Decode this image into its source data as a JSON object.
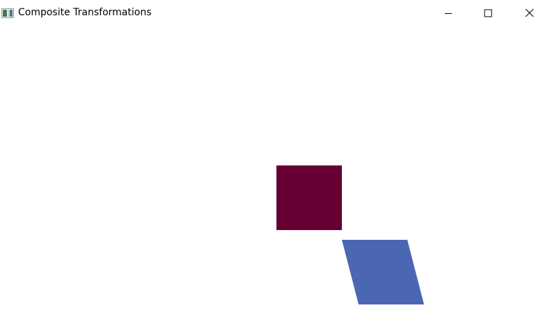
{
  "window": {
    "title": "Composite Transformations",
    "icon": "app-window-icon",
    "controls": {
      "minimize_icon": "minimize-icon",
      "maximize_icon": "maximize-icon",
      "close_icon": "close-icon"
    }
  },
  "canvas": {
    "background": "#ffffff",
    "shapes": [
      {
        "name": "original-square",
        "kind": "square",
        "fill": "#660033"
      },
      {
        "name": "transformed-parallelogram",
        "kind": "parallelogram",
        "fill": "#4b66b3"
      }
    ]
  }
}
